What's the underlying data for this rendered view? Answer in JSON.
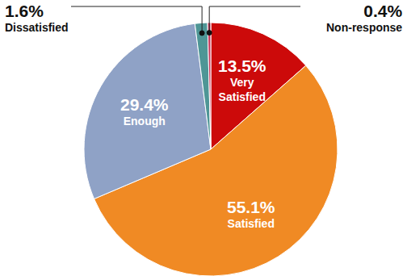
{
  "chart_data": {
    "type": "pie",
    "categories": [
      "Very Satisfied",
      "Satisfied",
      "Enough",
      "Dissatisfied",
      "Non-response"
    ],
    "values": [
      13.5,
      55.1,
      29.4,
      1.6,
      0.4
    ],
    "value_labels": [
      "13.5%",
      "55.1%",
      "29.4%",
      "1.6%",
      "0.4%"
    ],
    "colors": [
      "#cc0a0a",
      "#f08a24",
      "#8fa2c6",
      "#4e9696",
      "#c8365a"
    ],
    "data_labels": true
  }
}
